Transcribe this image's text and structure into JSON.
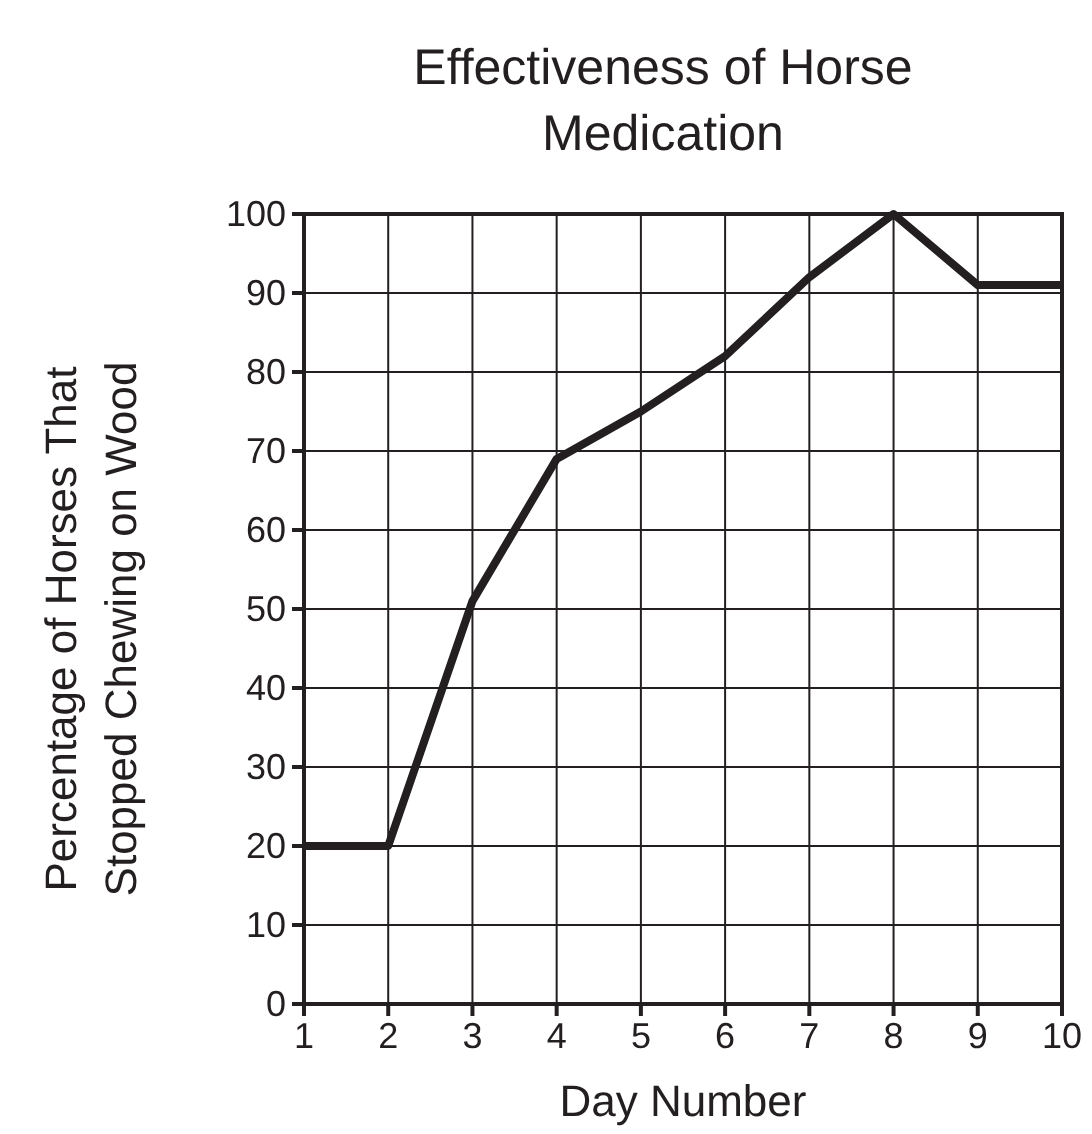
{
  "chart_data": {
    "type": "line",
    "title": "Effectiveness of Horse Medication",
    "xlabel": "Day Number",
    "ylabel": "Percentage of Horses That Stopped Chewing on Wood",
    "x": [
      1,
      2,
      3,
      4,
      5,
      6,
      7,
      8,
      9,
      10
    ],
    "series": [
      {
        "color": "#231f20",
        "values": [
          20,
          20,
          51,
          69,
          75,
          82,
          92,
          100,
          91,
          91
        ]
      }
    ],
    "xlim": [
      1,
      10
    ],
    "xticks": [
      1,
      2,
      3,
      4,
      5,
      6,
      7,
      8,
      9,
      10
    ],
    "ylim": [
      0,
      100
    ],
    "yticks": [
      0,
      10,
      20,
      30,
      40,
      50,
      60,
      70,
      80,
      90,
      100
    ],
    "grid": true,
    "marker": "none",
    "line_style": "solid"
  }
}
